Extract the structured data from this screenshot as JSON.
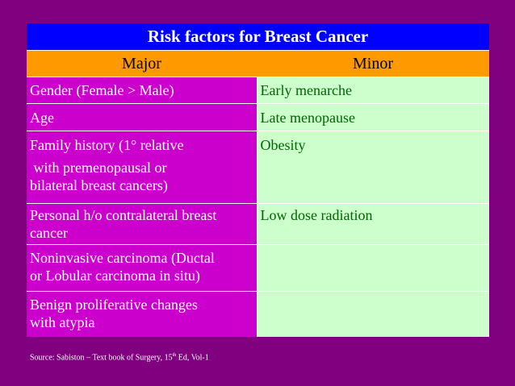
{
  "table": {
    "title": "Risk factors for Breast Cancer",
    "headers": {
      "major": "Major",
      "minor": "Minor"
    },
    "rows": [
      {
        "major": [
          "Gender (Female > Male)"
        ],
        "minor": "Early menarche"
      },
      {
        "major": [
          "Age"
        ],
        "minor": "Late menopause"
      },
      {
        "major": [
          "Family history (1° relative",
          " with premenopausal or",
          "bilateral breast cancers)"
        ],
        "minor": "Obesity"
      },
      {
        "major": [
          "Personal h/o contralateral breast",
          "cancer"
        ],
        "minor": "Low dose radiation"
      },
      {
        "major": [
          "Noninvasive carcinoma (Ductal",
          "or Lobular carcinoma in situ)"
        ],
        "minor": ""
      },
      {
        "major": [
          "Benign proliferative changes",
          "with atypia"
        ],
        "minor": ""
      }
    ]
  },
  "source": {
    "prefix": "Source: Sabiston – Text book of Surgery, 15",
    "superscript": "th",
    "suffix": " Ed, Vol-1"
  },
  "colors": {
    "background": "#800080",
    "title_bg": "#0000ff",
    "header_bg": "#ff9900",
    "major_bg": "#cc00cc",
    "minor_bg": "#ccffcc",
    "minor_text": "#006600"
  }
}
